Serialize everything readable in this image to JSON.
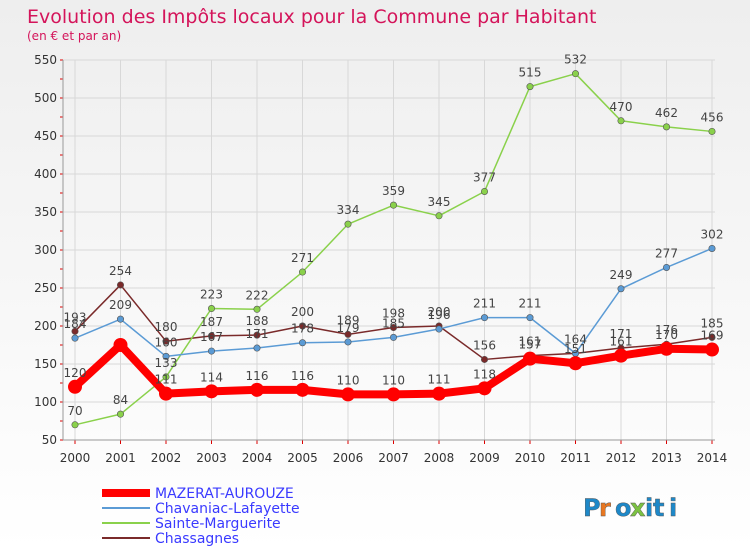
{
  "chart_data": {
    "type": "line",
    "title": "Evolution des Impôts locaux pour la Commune par Habitant",
    "subtitle": "(en € et par an)",
    "x": [
      2000,
      2001,
      2002,
      2003,
      2004,
      2005,
      2006,
      2007,
      2008,
      2009,
      2010,
      2011,
      2012,
      2013,
      2014
    ],
    "ylim": [
      50,
      550
    ],
    "yticks": [
      50,
      100,
      150,
      200,
      250,
      300,
      350,
      400,
      450,
      500,
      550
    ],
    "grid": true,
    "legend_position": "bottom-left",
    "series": [
      {
        "name": "MAZERAT-AUROUZE",
        "color": "#ff0000",
        "values": [
          120,
          175,
          111,
          114,
          116,
          116,
          110,
          110,
          111,
          118,
          157,
          151,
          161,
          170,
          169
        ],
        "labels": [
          "120",
          "",
          "111",
          "114",
          "116",
          "116",
          "110",
          "110",
          "111",
          "118",
          "157",
          "151",
          "161",
          "170",
          "169"
        ]
      },
      {
        "name": "Chavaniac-Lafayette",
        "color": "#5b9bd5",
        "values": [
          184,
          209,
          160,
          167,
          171,
          178,
          179,
          185,
          196,
          211,
          211,
          164,
          249,
          277,
          302
        ],
        "labels": [
          "184",
          "209",
          "160",
          "167",
          "171",
          "178",
          "179",
          "185",
          "196",
          "211",
          "211",
          "",
          "249",
          "277",
          "302"
        ]
      },
      {
        "name": "Sainte-Marguerite",
        "color": "#8ad14b",
        "values": [
          70,
          84,
          133,
          223,
          222,
          271,
          334,
          359,
          345,
          377,
          515,
          532,
          470,
          462,
          456
        ],
        "labels": [
          "70",
          "84",
          "133",
          "223",
          "222",
          "271",
          "334",
          "359",
          "345",
          "377",
          "515",
          "532",
          "470",
          "462",
          "456"
        ]
      },
      {
        "name": "Chassagnes",
        "color": "#7a2a2a",
        "values": [
          193,
          254,
          180,
          187,
          188,
          200,
          189,
          198,
          200,
          156,
          161,
          164,
          171,
          176,
          185
        ],
        "labels": [
          "193",
          "254",
          "180",
          "187",
          "188",
          "200",
          "189",
          "198",
          "200",
          "156",
          "161",
          "164",
          "171",
          "176",
          "185"
        ]
      }
    ]
  },
  "logo": {
    "text": "Proxiti"
  }
}
